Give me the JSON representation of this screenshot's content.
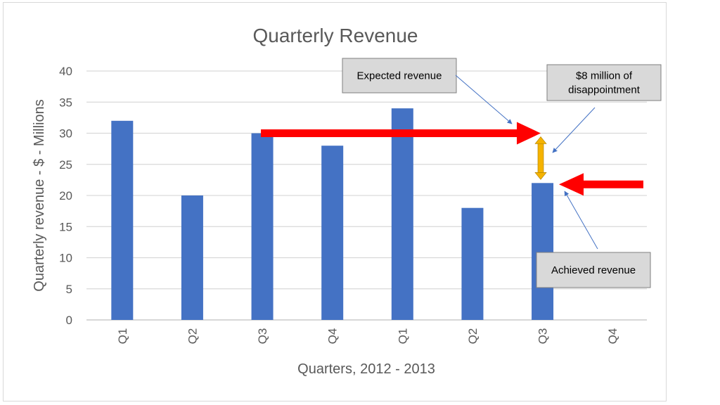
{
  "chart_data": {
    "type": "bar",
    "title": "Quarterly Revenue",
    "xlabel": "Quarters, 2012 - 2013",
    "ylabel": "Quarterly revenue - $ - Millions",
    "categories": [
      "Q1",
      "Q2",
      "Q3",
      "Q4",
      "Q1",
      "Q2",
      "Q3",
      "Q4"
    ],
    "values": [
      32,
      20,
      30,
      28,
      34,
      18,
      22,
      null
    ],
    "ylim": [
      0,
      40
    ],
    "yticks": [
      0,
      5,
      10,
      15,
      20,
      25,
      30,
      35,
      40
    ],
    "grid": true,
    "bar_color": "#4472C4",
    "annotations": {
      "expected": {
        "label": "Expected revenue",
        "value": 30
      },
      "achieved": {
        "label": "Achieved revenue",
        "value": 22
      },
      "gap": {
        "label_lines": [
          "$8 million of",
          "disappointment"
        ],
        "from": 22,
        "to": 30
      }
    },
    "arrow_color": "#FF0000",
    "gap_color": "#F5B300"
  }
}
